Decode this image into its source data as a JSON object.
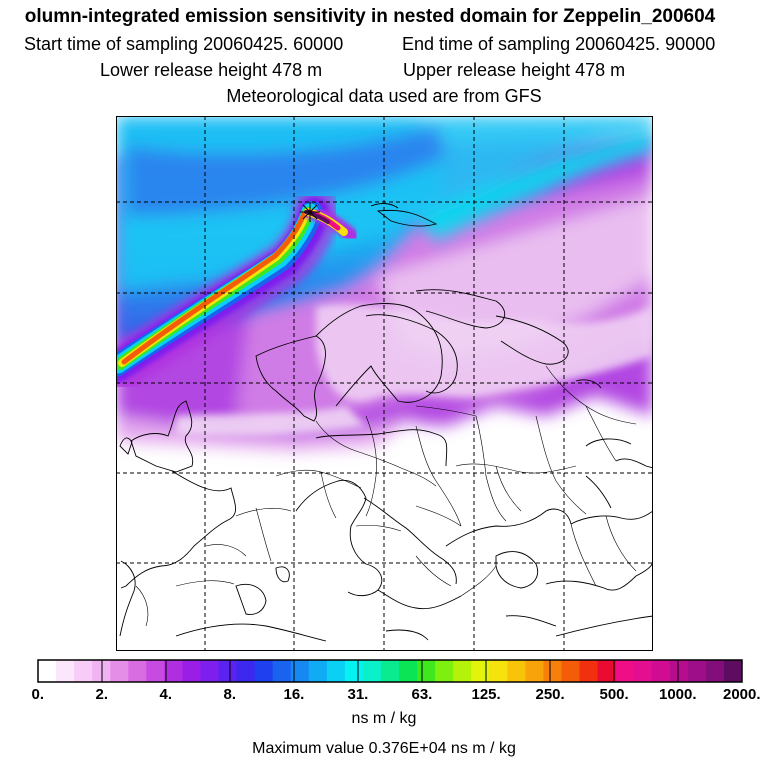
{
  "header": {
    "title": "olumn-integrated emission sensitivity in nested domain for Zeppelin_200604",
    "start_sampling": "Start time of sampling 20060425. 60000",
    "end_sampling": "End time of sampling 20060425. 90000",
    "lower_release": "Lower release height  478 m",
    "upper_release": "Upper release height  478 m",
    "met_data": "Meteorological data used are from GFS"
  },
  "colorbar": {
    "colors": [
      "#ffffff",
      "#fbe6fb",
      "#f7cdf7",
      "#f2b3f2",
      "#e58ee8",
      "#d86de2",
      "#c74be0",
      "#b02ee0",
      "#9a1ee6",
      "#7f1fee",
      "#5c22f0",
      "#3c28ee",
      "#1f40ee",
      "#1963ef",
      "#1588f2",
      "#10abf4",
      "#0bd0f6",
      "#06f2f2",
      "#0af0c8",
      "#0aea8e",
      "#0ae455",
      "#3fe81e",
      "#7ef010",
      "#b4f20a",
      "#e3f40c",
      "#f6e20c",
      "#f8c40a",
      "#f8a30a",
      "#f6800a",
      "#f45c0a",
      "#f0300e",
      "#ea0c30",
      "#f00e86",
      "#e40e90",
      "#d10c92",
      "#b80c8e",
      "#9e0e88",
      "#820e7c",
      "#5e0c60"
    ],
    "tick_labels": [
      "0.",
      "2.",
      "4.",
      "8.",
      "16.",
      "31.",
      "63.",
      "125.",
      "250.",
      "500.",
      "1000.",
      "2000."
    ],
    "units": "ns m / kg"
  },
  "max_value": "Maximum value  0.376E+04 ns m / kg"
}
